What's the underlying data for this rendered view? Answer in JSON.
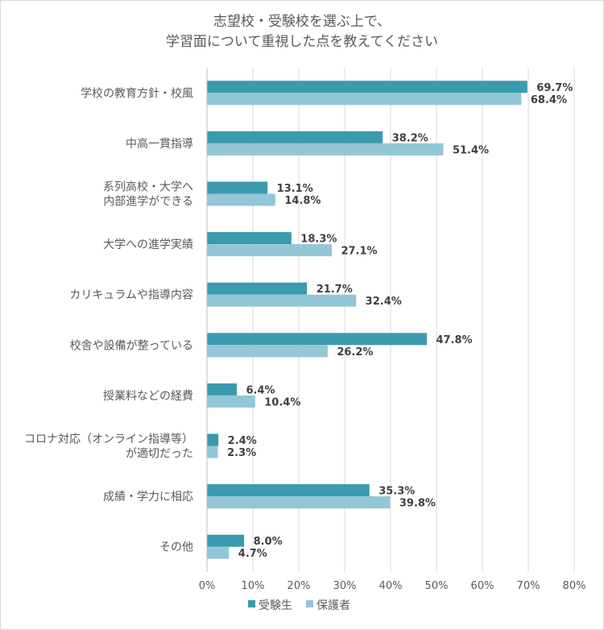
{
  "chart_data": {
    "type": "bar",
    "orientation": "horizontal",
    "title": [
      "志望校・受験校を選ぶ上で、",
      "学習面について重視した点を教えてください"
    ],
    "categories": [
      [
        "学校の教育方針・校風"
      ],
      [
        "中高一貫指導"
      ],
      [
        "系列高校・大学へ",
        "内部進学ができる"
      ],
      [
        "大学への進学実績"
      ],
      [
        "カリキュラムや指導内容"
      ],
      [
        "校舎や設備が整っている"
      ],
      [
        "授業料などの経費"
      ],
      [
        "コロナ対応（オンライン指導等）",
        "が適切だった"
      ],
      [
        "成績・学力に相応"
      ],
      [
        "その他"
      ]
    ],
    "series": [
      {
        "name": "受験生",
        "color": "#3a9aae",
        "values": [
          69.7,
          38.2,
          13.1,
          18.3,
          21.7,
          47.8,
          6.4,
          2.4,
          35.3,
          8.0
        ],
        "labels": [
          "69.7%",
          "38.2%",
          "13.1%",
          "18.3%",
          "21.7%",
          "47.8%",
          "6.4%",
          "2.4%",
          "35.3%",
          "8.0%"
        ]
      },
      {
        "name": "保護者",
        "color": "#93c6d6",
        "values": [
          68.4,
          51.4,
          14.8,
          27.1,
          32.4,
          26.2,
          10.4,
          2.3,
          39.8,
          4.7
        ],
        "labels": [
          "68.4%",
          "51.4%",
          "14.8%",
          "27.1%",
          "32.4%",
          "26.2%",
          "10.4%",
          "2.3%",
          "39.8%",
          "4.7%"
        ]
      }
    ],
    "xlim": [
      0,
      80
    ],
    "xticks": [
      0,
      10,
      20,
      30,
      40,
      50,
      60,
      70,
      80
    ],
    "xtick_labels": [
      "0%",
      "10%",
      "20%",
      "30%",
      "40%",
      "50%",
      "60%",
      "70%",
      "80%"
    ],
    "grid": true,
    "legend": "bottom"
  }
}
